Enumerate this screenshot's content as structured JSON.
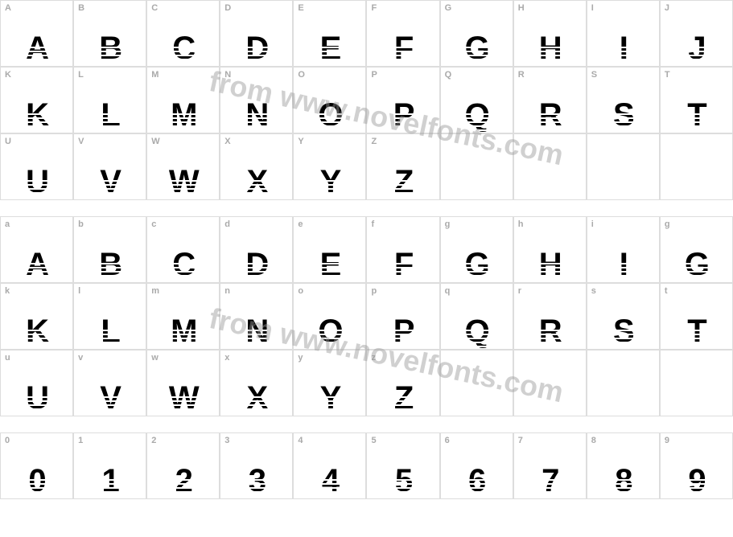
{
  "watermark": "from www.novelfonts.com",
  "rows": [
    {
      "type": "grid",
      "cells": [
        {
          "label": "A",
          "glyph": "A"
        },
        {
          "label": "B",
          "glyph": "B"
        },
        {
          "label": "C",
          "glyph": "C"
        },
        {
          "label": "D",
          "glyph": "D"
        },
        {
          "label": "E",
          "glyph": "E"
        },
        {
          "label": "F",
          "glyph": "F"
        },
        {
          "label": "G",
          "glyph": "G"
        },
        {
          "label": "H",
          "glyph": "H"
        },
        {
          "label": "I",
          "glyph": "I"
        },
        {
          "label": "J",
          "glyph": "J"
        }
      ]
    },
    {
      "type": "grid",
      "cells": [
        {
          "label": "K",
          "glyph": "K"
        },
        {
          "label": "L",
          "glyph": "L"
        },
        {
          "label": "M",
          "glyph": "M"
        },
        {
          "label": "N",
          "glyph": "N"
        },
        {
          "label": "O",
          "glyph": "O"
        },
        {
          "label": "P",
          "glyph": "P"
        },
        {
          "label": "Q",
          "glyph": "Q"
        },
        {
          "label": "R",
          "glyph": "R"
        },
        {
          "label": "S",
          "glyph": "S"
        },
        {
          "label": "T",
          "glyph": "T"
        }
      ]
    },
    {
      "type": "grid",
      "cells": [
        {
          "label": "U",
          "glyph": "U"
        },
        {
          "label": "V",
          "glyph": "V"
        },
        {
          "label": "W",
          "glyph": "W"
        },
        {
          "label": "X",
          "glyph": "X"
        },
        {
          "label": "Y",
          "glyph": "Y"
        },
        {
          "label": "Z",
          "glyph": "Z"
        },
        {
          "label": "",
          "glyph": ""
        },
        {
          "label": "",
          "glyph": ""
        },
        {
          "label": "",
          "glyph": ""
        },
        {
          "label": "",
          "glyph": ""
        }
      ]
    },
    {
      "type": "spacer"
    },
    {
      "type": "grid",
      "cells": [
        {
          "label": "a",
          "glyph": "A"
        },
        {
          "label": "b",
          "glyph": "B"
        },
        {
          "label": "c",
          "glyph": "C"
        },
        {
          "label": "d",
          "glyph": "D"
        },
        {
          "label": "e",
          "glyph": "E"
        },
        {
          "label": "f",
          "glyph": "F"
        },
        {
          "label": "g",
          "glyph": "G"
        },
        {
          "label": "h",
          "glyph": "H"
        },
        {
          "label": "i",
          "glyph": "I"
        },
        {
          "label": "g",
          "glyph": "G"
        }
      ]
    },
    {
      "type": "grid",
      "cells": [
        {
          "label": "k",
          "glyph": "K"
        },
        {
          "label": "l",
          "glyph": "L"
        },
        {
          "label": "m",
          "glyph": "M"
        },
        {
          "label": "n",
          "glyph": "N"
        },
        {
          "label": "o",
          "glyph": "O"
        },
        {
          "label": "p",
          "glyph": "P"
        },
        {
          "label": "q",
          "glyph": "Q"
        },
        {
          "label": "r",
          "glyph": "R"
        },
        {
          "label": "s",
          "glyph": "S"
        },
        {
          "label": "t",
          "glyph": "T"
        }
      ]
    },
    {
      "type": "grid",
      "cells": [
        {
          "label": "u",
          "glyph": "U"
        },
        {
          "label": "v",
          "glyph": "V"
        },
        {
          "label": "w",
          "glyph": "W"
        },
        {
          "label": "x",
          "glyph": "X"
        },
        {
          "label": "y",
          "glyph": "Y"
        },
        {
          "label": "z",
          "glyph": "Z"
        },
        {
          "label": "",
          "glyph": ""
        },
        {
          "label": "",
          "glyph": ""
        },
        {
          "label": "",
          "glyph": ""
        },
        {
          "label": "",
          "glyph": ""
        }
      ]
    },
    {
      "type": "spacer"
    },
    {
      "type": "grid",
      "cells": [
        {
          "label": "0",
          "glyph": "0"
        },
        {
          "label": "1",
          "glyph": "1"
        },
        {
          "label": "2",
          "glyph": "2"
        },
        {
          "label": "3",
          "glyph": "3"
        },
        {
          "label": "4",
          "glyph": "4"
        },
        {
          "label": "5",
          "glyph": "5"
        },
        {
          "label": "6",
          "glyph": "6"
        },
        {
          "label": "7",
          "glyph": "7"
        },
        {
          "label": "8",
          "glyph": "8"
        },
        {
          "label": "9",
          "glyph": "9"
        }
      ]
    }
  ]
}
